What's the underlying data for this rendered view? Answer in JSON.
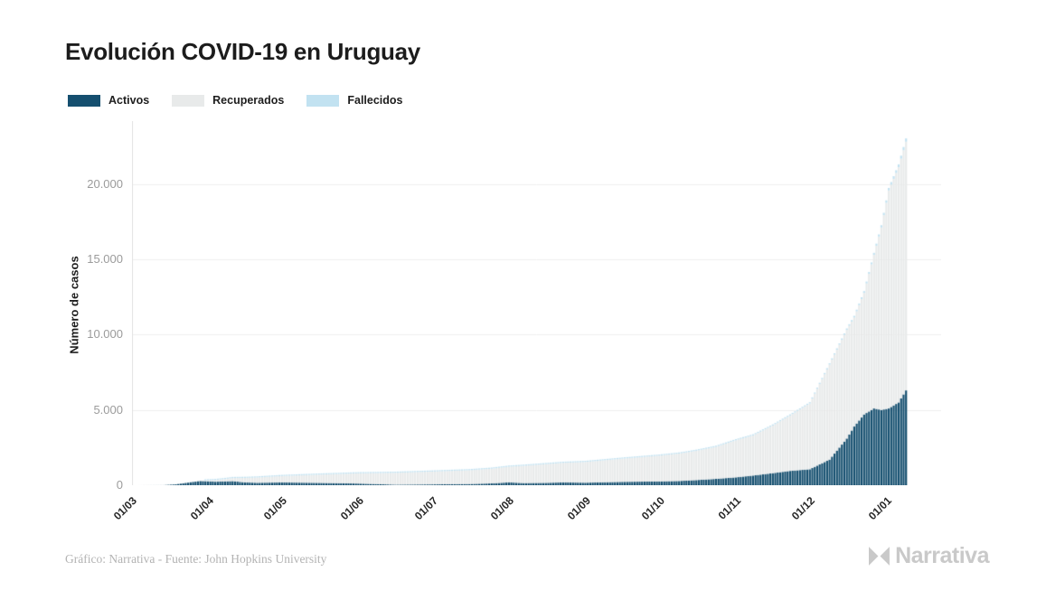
{
  "header": {
    "title": "Evolución COVID-19 en Uruguay"
  },
  "legend": {
    "items": [
      {
        "label": "Activos",
        "color": "#154f6f"
      },
      {
        "label": "Recuperados",
        "color": "#e8eaea"
      },
      {
        "label": "Fallecidos",
        "color": "#c2e2f1"
      }
    ]
  },
  "footer": {
    "credit": "Gráfico: Narrativa - Fuente: John Hopkins University",
    "brand": "Narrativa"
  },
  "chart_data": {
    "type": "area",
    "subtype": "stacked-daily-bars",
    "title": "Evolución COVID-19 en Uruguay",
    "xlabel": "",
    "ylabel": "Número de casos",
    "ylim": [
      0,
      24200
    ],
    "grid": "horizontal",
    "legend_position": "top-left",
    "y_ticks": [
      {
        "label": "0",
        "value": 0
      },
      {
        "label": "5.000",
        "value": 5000
      },
      {
        "label": "10.000",
        "value": 10000
      },
      {
        "label": "15.000",
        "value": 15000
      },
      {
        "label": "20.000",
        "value": 20000
      }
    ],
    "x_ticks": [
      {
        "label": "01/03",
        "day": 0
      },
      {
        "label": "01/04",
        "day": 31
      },
      {
        "label": "01/05",
        "day": 61
      },
      {
        "label": "01/06",
        "day": 92
      },
      {
        "label": "01/07",
        "day": 122
      },
      {
        "label": "01/08",
        "day": 153
      },
      {
        "label": "01/09",
        "day": 184
      },
      {
        "label": "01/10",
        "day": 214
      },
      {
        "label": "01/11",
        "day": 245
      },
      {
        "label": "01/12",
        "day": 275
      },
      {
        "label": "01/01",
        "day": 306
      }
    ],
    "days_total": 314,
    "series_order_bottom_to_top": [
      "activos",
      "recuperados",
      "fallecidos"
    ],
    "colors": {
      "activos": "#154f6f",
      "recuperados": "#e8eaea",
      "fallecidos": "#c2e2f1",
      "grid": "#efefef",
      "axis": "#e3e3e3"
    },
    "anchors": [
      {
        "day": 0,
        "activos": 0,
        "recuperados": 0,
        "fallecidos": 0
      },
      {
        "day": 12,
        "activos": 4,
        "recuperados": 0,
        "fallecidos": 0
      },
      {
        "day": 17,
        "activos": 55,
        "recuperados": 0,
        "fallecidos": 0
      },
      {
        "day": 24,
        "activos": 215,
        "recuperados": 2,
        "fallecidos": 0
      },
      {
        "day": 27,
        "activos": 280,
        "recuperados": 20,
        "fallecidos": 0
      },
      {
        "day": 30,
        "activos": 260,
        "recuperados": 62,
        "fallecidos": 1
      },
      {
        "day": 33,
        "activos": 230,
        "recuperados": 110,
        "fallecidos": 2
      },
      {
        "day": 37,
        "activos": 251,
        "recuperados": 158,
        "fallecidos": 6
      },
      {
        "day": 40,
        "activos": 270,
        "recuperados": 200,
        "fallecidos": 7
      },
      {
        "day": 45,
        "activos": 186,
        "recuperados": 296,
        "fallecidos": 10
      },
      {
        "day": 50,
        "activos": 160,
        "recuperados": 350,
        "fallecidos": 13
      },
      {
        "day": 60,
        "activos": 183,
        "recuperados": 426,
        "fallecidos": 16
      },
      {
        "day": 75,
        "activos": 154,
        "recuperados": 548,
        "fallecidos": 19
      },
      {
        "day": 91,
        "activos": 109,
        "recuperados": 680,
        "fallecidos": 22
      },
      {
        "day": 106,
        "activos": 35,
        "recuperados": 789,
        "fallecidos": 23
      },
      {
        "day": 121,
        "activos": 53,
        "recuperados": 852,
        "fallecidos": 27
      },
      {
        "day": 136,
        "activos": 78,
        "recuperados": 915,
        "fallecidos": 33
      },
      {
        "day": 145,
        "activos": 120,
        "recuperados": 975,
        "fallecidos": 34
      },
      {
        "day": 152,
        "activos": 188,
        "recuperados": 1041,
        "fallecidos": 35
      },
      {
        "day": 158,
        "activos": 140,
        "recuperados": 1150,
        "fallecidos": 37
      },
      {
        "day": 167,
        "activos": 156,
        "recuperados": 1244,
        "fallecidos": 40
      },
      {
        "day": 174,
        "activos": 185,
        "recuperados": 1300,
        "fallecidos": 41
      },
      {
        "day": 183,
        "activos": 165,
        "recuperados": 1378,
        "fallecidos": 42
      },
      {
        "day": 198,
        "activos": 222,
        "recuperados": 1541,
        "fallecidos": 45
      },
      {
        "day": 213,
        "activos": 250,
        "recuperados": 1713,
        "fallecidos": 47
      },
      {
        "day": 221,
        "activos": 280,
        "recuperados": 1820,
        "fallecidos": 49
      },
      {
        "day": 228,
        "activos": 340,
        "recuperados": 1946,
        "fallecidos": 51
      },
      {
        "day": 236,
        "activos": 420,
        "recuperados": 2130,
        "fallecidos": 55
      },
      {
        "day": 244,
        "activos": 520,
        "recuperados": 2464,
        "fallecidos": 60
      },
      {
        "day": 251,
        "activos": 640,
        "recuperados": 2668,
        "fallecidos": 62
      },
      {
        "day": 259,
        "activos": 800,
        "recuperados": 3165,
        "fallecidos": 65
      },
      {
        "day": 266,
        "activos": 950,
        "recuperados": 3681,
        "fallecidos": 68
      },
      {
        "day": 274,
        "activos": 1060,
        "recuperados": 4377,
        "fallecidos": 74
      },
      {
        "day": 282,
        "activos": 1700,
        "recuperados": 6317,
        "fallecidos": 87
      },
      {
        "day": 289,
        "activos": 3100,
        "recuperados": 7220,
        "fallecidos": 98
      },
      {
        "day": 292,
        "activos": 3900,
        "recuperados": 7250,
        "fallecidos": 105
      },
      {
        "day": 296,
        "activos": 4700,
        "recuperados": 8080,
        "fallecidos": 120
      },
      {
        "day": 300,
        "activos": 5100,
        "recuperados": 10210,
        "fallecidos": 133
      },
      {
        "day": 303,
        "activos": 5000,
        "recuperados": 12131,
        "fallecidos": 147
      },
      {
        "day": 306,
        "activos": 5100,
        "recuperados": 14489,
        "fallecidos": 164
      },
      {
        "day": 310,
        "activos": 5500,
        "recuperados": 15634,
        "fallecidos": 190
      },
      {
        "day": 313,
        "activos": 6300,
        "recuperados": 16532,
        "fallecidos": 216
      }
    ]
  }
}
